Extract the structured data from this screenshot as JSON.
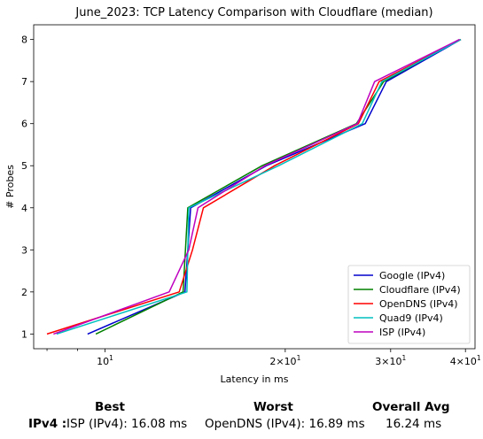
{
  "chart_data": {
    "type": "line",
    "title": "June_2023: TCP Latency Comparison with Cloudflare (median)",
    "xlabel": "Latency in ms",
    "ylabel": "# Probes",
    "xscale": "log",
    "xlim": [
      7.6,
      41.5
    ],
    "ylim": [
      0.65,
      8.35
    ],
    "x_ticks": [
      {
        "value": 10,
        "base": "10",
        "exp": "1",
        "coef": ""
      },
      {
        "value": 20,
        "base": "10",
        "exp": "1",
        "coef": "2×"
      },
      {
        "value": 30,
        "base": "10",
        "exp": "1",
        "coef": "3×"
      },
      {
        "value": 40,
        "base": "10",
        "exp": "1",
        "coef": "4×"
      }
    ],
    "y_ticks": [
      "1",
      "2",
      "3",
      "4",
      "5",
      "6",
      "7",
      "8"
    ],
    "legend_position": "lower-right",
    "series": [
      {
        "name": "Google (IPv4)",
        "color": "#0000cc",
        "x": [
          9.35,
          13.6,
          13.9,
          18.6,
          27.2,
          29.5,
          39.3
        ],
        "y": [
          1,
          2,
          4,
          5,
          6,
          7,
          8
        ]
      },
      {
        "name": "Cloudflare (IPv4)",
        "color": "#008000",
        "x": [
          9.65,
          13.5,
          13.75,
          18.3,
          26.3,
          29.2,
          39.1
        ],
        "y": [
          1,
          2,
          4,
          5,
          6,
          7,
          8
        ]
      },
      {
        "name": "OpenDNS (IPv4)",
        "color": "#ff0000",
        "x": [
          8.0,
          13.3,
          14.0,
          14.6,
          19.2,
          26.5,
          28.7,
          39.3
        ],
        "y": [
          1,
          2,
          3,
          4,
          5,
          6,
          7,
          8
        ]
      },
      {
        "name": "Quad9 (IPv4)",
        "color": "#00bfbf",
        "x": [
          8.3,
          13.7,
          13.8,
          19.5,
          26.9,
          29.0,
          39.3
        ],
        "y": [
          1,
          2,
          4,
          5,
          6,
          7,
          8
        ]
      },
      {
        "name": "ISP (IPv4)",
        "color": "#bf00bf",
        "x": [
          8.2,
          12.8,
          13.8,
          14.3,
          18.5,
          26.4,
          28.2,
          39.1
        ],
        "y": [
          1,
          2,
          3,
          4,
          5,
          6,
          7,
          8
        ]
      }
    ]
  },
  "summary": {
    "best_header": "Best",
    "worst_header": "Worst",
    "avg_header": "Overall Avg",
    "row_label": "IPv4 :",
    "best_value": "ISP (IPv4): 16.08 ms",
    "worst_value": "OpenDNS (IPv4): 16.89 ms",
    "avg_value": "16.24 ms"
  }
}
